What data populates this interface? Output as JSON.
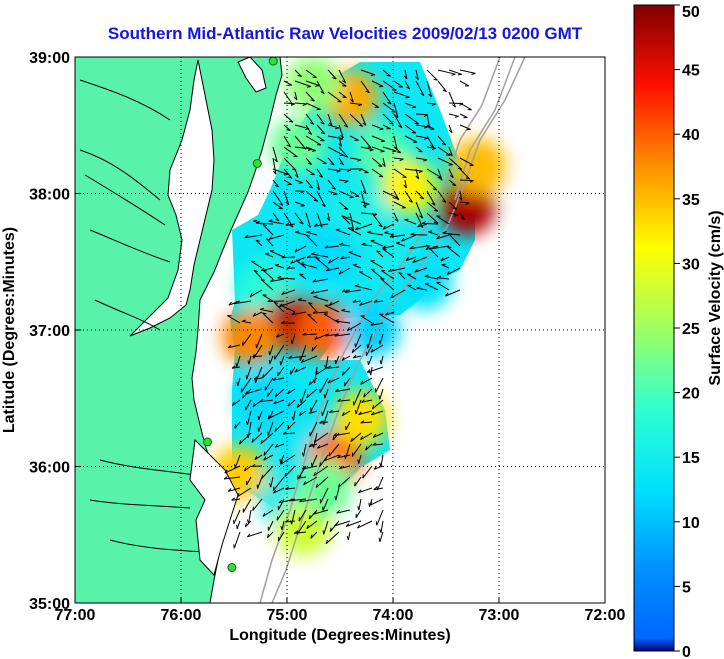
{
  "figure": {
    "title": "Southern Mid-Atlantic Raw Velocities 2009/02/13 0200 GMT",
    "xlabel": "Longitude (Degrees:Minutes)",
    "ylabel": "Latitude (Degrees:Minutes)",
    "x_ticks": [
      "77:00",
      "76:00",
      "75:00",
      "74:00",
      "73:00",
      "72:00"
    ],
    "y_ticks": [
      "39:00",
      "38:00",
      "37:00",
      "36:00",
      "35:00"
    ]
  },
  "colorbar": {
    "label": "Surface Velocity (cm/s)",
    "ticks": [
      "0",
      "5",
      "10",
      "15",
      "20",
      "25",
      "30",
      "35",
      "40",
      "45",
      "50"
    ],
    "range": [
      0,
      50
    ],
    "colormap": "jet"
  },
  "colors": {
    "land": "#58f2a8",
    "ocean": "#ffffff",
    "coastline": "#000000",
    "bathymetry": "#a0a0a0",
    "title": "#1414e6",
    "station_marker": "#33dd33"
  },
  "chart_data": {
    "type": "heatmap",
    "title": "Southern Mid-Atlantic Raw Velocities 2009/02/13 0200 GMT",
    "xlabel": "Longitude (Degrees:Minutes)",
    "ylabel": "Latitude (Degrees:Minutes)",
    "xlim": [
      -77,
      -72
    ],
    "ylim": [
      35,
      39
    ],
    "grid": "dotted",
    "value_label": "Surface Velocity (cm/s)",
    "value_range": [
      0,
      50
    ],
    "stations": [
      {
        "lon": -75.13,
        "lat": 38.97
      },
      {
        "lon": -75.28,
        "lat": 38.22
      },
      {
        "lon": -75.75,
        "lat": 36.18
      },
      {
        "lon": -75.52,
        "lat": 35.26
      }
    ],
    "velocity_patches": [
      {
        "lon": -74.4,
        "lat": 38.7,
        "speed": 36
      },
      {
        "lon": -74.75,
        "lat": 38.8,
        "speed": 24
      },
      {
        "lon": -74.9,
        "lat": 38.35,
        "speed": 22
      },
      {
        "lon": -74.1,
        "lat": 38.3,
        "speed": 21
      },
      {
        "lon": -73.85,
        "lat": 38.05,
        "speed": 32
      },
      {
        "lon": -73.3,
        "lat": 37.9,
        "speed": 48
      },
      {
        "lon": -73.2,
        "lat": 38.2,
        "speed": 35
      },
      {
        "lon": -74.3,
        "lat": 37.85,
        "speed": 16
      },
      {
        "lon": -74.6,
        "lat": 37.55,
        "speed": 12
      },
      {
        "lon": -74.0,
        "lat": 37.5,
        "speed": 15
      },
      {
        "lon": -75.2,
        "lat": 37.3,
        "speed": 18
      },
      {
        "lon": -73.7,
        "lat": 37.35,
        "speed": 13
      },
      {
        "lon": -74.95,
        "lat": 37.05,
        "speed": 48
      },
      {
        "lon": -74.65,
        "lat": 37.0,
        "speed": 40
      },
      {
        "lon": -75.35,
        "lat": 36.95,
        "speed": 38
      },
      {
        "lon": -74.2,
        "lat": 37.0,
        "speed": 11
      },
      {
        "lon": -75.2,
        "lat": 36.5,
        "speed": 12
      },
      {
        "lon": -74.85,
        "lat": 36.2,
        "speed": 14
      },
      {
        "lon": -74.55,
        "lat": 36.05,
        "speed": 40
      },
      {
        "lon": -74.3,
        "lat": 36.35,
        "speed": 33
      },
      {
        "lon": -75.45,
        "lat": 35.95,
        "speed": 34
      },
      {
        "lon": -75.0,
        "lat": 35.75,
        "speed": 15
      },
      {
        "lon": -74.85,
        "lat": 35.55,
        "speed": 28
      },
      {
        "lon": -74.65,
        "lat": 35.85,
        "speed": 22
      }
    ]
  }
}
